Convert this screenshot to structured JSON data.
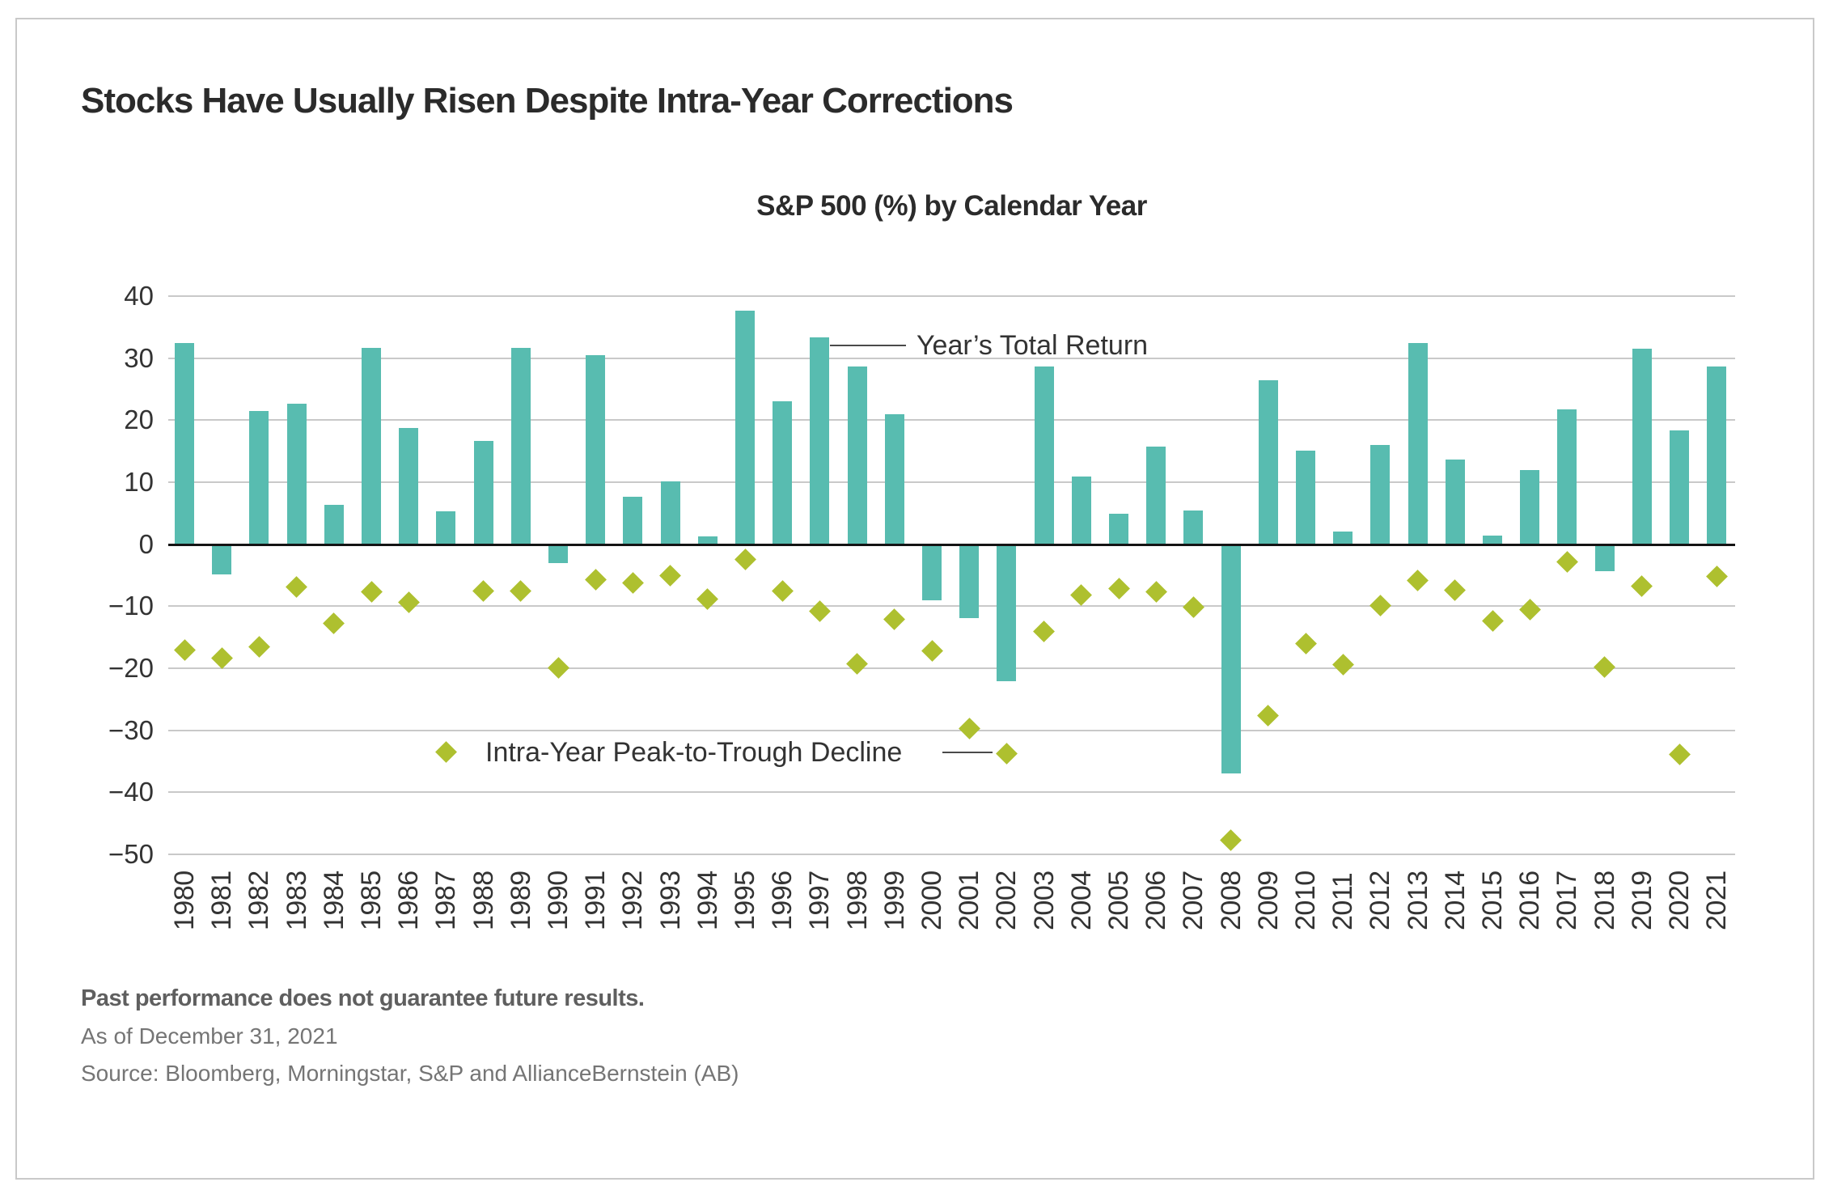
{
  "title": "Stocks Have Usually Risen Despite Intra-Year Corrections",
  "subtitle": "S&P 500 (%) by Calendar Year",
  "annotations": {
    "bar_series_label": "Year’s Total Return",
    "diamond_series_label": "Intra-Year Peak-to-Trough Decline"
  },
  "y_axis": {
    "tick_labels": [
      "40",
      "30",
      "20",
      "10",
      "0",
      "−10",
      "−20",
      "−30",
      "−40",
      "−50"
    ]
  },
  "footer": {
    "disclaimer": "Past performance does not guarantee future results.",
    "as_of": "As of December 31, 2021",
    "source": "Source: Bloomberg, Morningstar, S&P and AllianceBernstein (AB)"
  },
  "colors": {
    "bar": "#58BCB0",
    "diamond": "#AEC02F",
    "gridline": "#C9C9C9",
    "zero_line": "#141414",
    "heading_text": "#2B2B2B",
    "axis_text": "#333333",
    "footer_text": "#757575"
  },
  "chart_data": {
    "type": "bar",
    "title": "S&P 500 (%) by Calendar Year",
    "categories": [
      "1980",
      "1981",
      "1982",
      "1983",
      "1984",
      "1985",
      "1986",
      "1987",
      "1988",
      "1989",
      "1990",
      "1991",
      "1992",
      "1993",
      "1994",
      "1995",
      "1996",
      "1997",
      "1998",
      "1999",
      "2000",
      "2001",
      "2002",
      "2003",
      "2004",
      "2005",
      "2006",
      "2007",
      "2008",
      "2009",
      "2010",
      "2011",
      "2012",
      "2013",
      "2014",
      "2015",
      "2016",
      "2017",
      "2018",
      "2019",
      "2020",
      "2021"
    ],
    "series": [
      {
        "name": "Year's Total Return",
        "type": "bar",
        "values": [
          32.4,
          -4.9,
          21.5,
          22.6,
          6.3,
          31.7,
          18.7,
          5.3,
          16.6,
          31.7,
          -3.1,
          30.5,
          7.6,
          10.1,
          1.3,
          37.6,
          23.0,
          33.4,
          28.6,
          21.0,
          -9.1,
          -11.9,
          -22.1,
          28.7,
          10.9,
          4.9,
          15.8,
          5.5,
          -37.0,
          26.5,
          15.1,
          2.1,
          16.0,
          32.4,
          13.7,
          1.4,
          12.0,
          21.8,
          -4.4,
          31.5,
          18.4,
          28.7
        ]
      },
      {
        "name": "Intra-Year Peak-to-Trough Decline",
        "type": "scatter",
        "marker": "diamond",
        "values": [
          -17.1,
          -18.4,
          -16.6,
          -6.9,
          -12.7,
          -7.7,
          -9.4,
          -33.5,
          -7.6,
          -7.6,
          -19.9,
          -5.7,
          -6.2,
          -5.0,
          -8.9,
          -2.5,
          -7.6,
          -10.8,
          -19.3,
          -12.1,
          -17.2,
          -29.7,
          -33.8,
          -14.1,
          -8.2,
          -7.2,
          -7.7,
          -10.1,
          -47.7,
          -27.6,
          -16.0,
          -19.4,
          -9.9,
          -5.8,
          -7.4,
          -12.4,
          -10.5,
          -2.8,
          -19.8,
          -6.8,
          -33.9,
          -5.2
        ]
      }
    ],
    "ylim": [
      -50,
      40
    ],
    "ytick_step": 10,
    "grid": true,
    "legend_position": "inline-annotations"
  }
}
